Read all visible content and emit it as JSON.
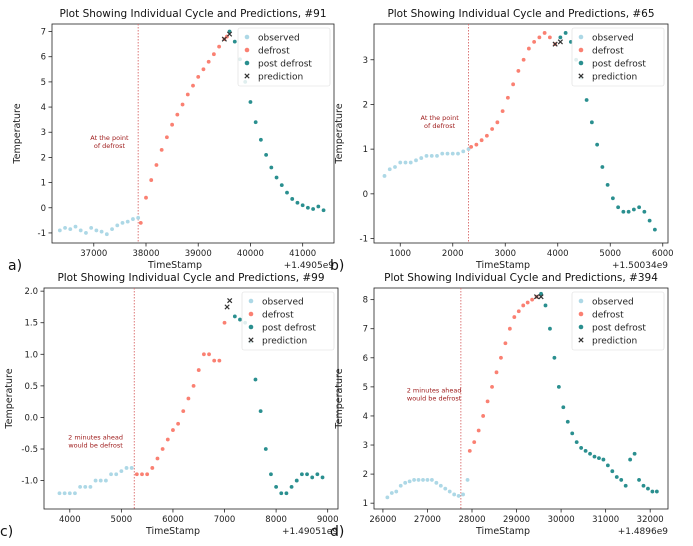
{
  "figure": {
    "colors": {
      "observed": "#add8e6",
      "defrost": "#fa8072",
      "post_defrost": "#2a8f8f",
      "prediction": "#333333",
      "vline": "#d96a6a",
      "annotation": "#a02020"
    }
  },
  "chart_data": [
    {
      "type": "scatter",
      "panel_label": "a)",
      "title": "Plot Showing Individual Cycle and Predictions, #91",
      "xlabel": "TimeStamp",
      "ylabel": "Temperature",
      "offset_text": "+1.4905e9",
      "xlim": [
        36200,
        41600
      ],
      "ylim": [
        -1.4,
        7.3
      ],
      "xticks": [
        37000,
        38000,
        39000,
        40000,
        41000
      ],
      "xtick_labels": [
        "37000",
        "38000",
        "39000",
        "40000",
        "41000"
      ],
      "yticks": [
        -1,
        0,
        1,
        2,
        3,
        4,
        5,
        6,
        7
      ],
      "ytick_labels": [
        "-1",
        "0",
        "1",
        "2",
        "3",
        "4",
        "5",
        "6",
        "7"
      ],
      "legend": [
        "observed",
        "defrost",
        "post defrost",
        "prediction"
      ],
      "legend_position": "top-right",
      "vline_x": 37850,
      "annotation": {
        "lines": [
          "At the point",
          "of defrost"
        ],
        "x": 37300,
        "y": 2.7
      },
      "series": [
        {
          "name": "observed",
          "x": [
            36350,
            36450,
            36550,
            36650,
            36750,
            36850,
            36950,
            37050,
            37150,
            37250,
            37350,
            37450,
            37550,
            37650,
            37750,
            37850
          ],
          "y": [
            -0.9,
            -0.8,
            -0.85,
            -0.75,
            -0.9,
            -1.0,
            -0.8,
            -0.9,
            -0.95,
            -1.05,
            -0.85,
            -0.7,
            -0.6,
            -0.55,
            -0.45,
            -0.4
          ]
        },
        {
          "name": "defrost",
          "x": [
            37900,
            38000,
            38100,
            38200,
            38300,
            38400,
            38500,
            38600,
            38700,
            38800,
            38900,
            39000,
            39100,
            39200,
            39300,
            39400,
            39500,
            39550
          ],
          "y": [
            -0.6,
            0.4,
            1.1,
            1.7,
            2.3,
            2.8,
            3.3,
            3.7,
            4.1,
            4.5,
            4.85,
            5.2,
            5.5,
            5.8,
            6.1,
            6.4,
            6.7,
            6.8
          ]
        },
        {
          "name": "post defrost",
          "x": [
            39600,
            39700,
            39800,
            39900,
            40000,
            40100,
            40200,
            40300,
            40400,
            40500,
            40600,
            40700,
            40800,
            40900,
            41000,
            41100,
            41200,
            41300,
            41400
          ],
          "y": [
            7.0,
            6.6,
            5.9,
            5.0,
            4.2,
            3.4,
            2.7,
            2.1,
            1.6,
            1.2,
            0.9,
            0.6,
            0.35,
            0.2,
            0.1,
            0.0,
            -0.05,
            0.05,
            -0.1
          ]
        },
        {
          "name": "prediction",
          "x": [
            39500,
            39600
          ],
          "y": [
            6.7,
            6.9
          ]
        }
      ]
    },
    {
      "type": "scatter",
      "panel_label": "b)",
      "title": "Plot Showing Individual Cycle and Predictions, #65",
      "xlabel": "TimeStamp",
      "ylabel": "Temperature",
      "offset_text": "+1.50034e9",
      "xlim": [
        500,
        6100
      ],
      "ylim": [
        -1.1,
        3.8
      ],
      "xticks": [
        1000,
        2000,
        3000,
        4000,
        5000,
        6000
      ],
      "xtick_labels": [
        "1000",
        "2000",
        "3000",
        "4000",
        "5000",
        "6000"
      ],
      "yticks": [
        -1,
        0,
        1,
        2,
        3
      ],
      "ytick_labels": [
        "-1",
        "0",
        "1",
        "2",
        "3"
      ],
      "legend": [
        "observed",
        "defrost",
        "post defrost",
        "prediction"
      ],
      "legend_position": "top-right",
      "vline_x": 2300,
      "annotation": {
        "lines": [
          "At the point",
          "of defrost"
        ],
        "x": 1750,
        "y": 1.65
      },
      "series": [
        {
          "name": "observed",
          "x": [
            700,
            800,
            900,
            1000,
            1100,
            1200,
            1300,
            1400,
            1500,
            1600,
            1700,
            1800,
            1900,
            2000,
            2100,
            2200,
            2300
          ],
          "y": [
            0.4,
            0.55,
            0.6,
            0.7,
            0.7,
            0.7,
            0.75,
            0.8,
            0.85,
            0.85,
            0.85,
            0.9,
            0.9,
            0.9,
            0.9,
            0.95,
            1.0
          ]
        },
        {
          "name": "defrost",
          "x": [
            2350,
            2450,
            2550,
            2650,
            2750,
            2850,
            2950,
            3050,
            3150,
            3250,
            3350,
            3450,
            3550,
            3650,
            3750,
            3850,
            3950
          ],
          "y": [
            1.05,
            1.1,
            1.2,
            1.3,
            1.45,
            1.6,
            1.85,
            2.15,
            2.45,
            2.75,
            3.0,
            3.25,
            3.4,
            3.5,
            3.6,
            3.5,
            3.35
          ]
        },
        {
          "name": "post defrost",
          "x": [
            4050,
            4150,
            4250,
            4350,
            4450,
            4550,
            4650,
            4750,
            4850,
            4950,
            5050,
            5150,
            5250,
            5350,
            5450,
            5550,
            5650,
            5750,
            5850
          ],
          "y": [
            3.5,
            3.6,
            3.4,
            3.0,
            2.6,
            2.1,
            1.6,
            1.1,
            0.6,
            0.2,
            -0.1,
            -0.3,
            -0.4,
            -0.4,
            -0.35,
            -0.3,
            -0.4,
            -0.6,
            -0.8
          ]
        },
        {
          "name": "prediction",
          "x": [
            3950,
            4050
          ],
          "y": [
            3.35,
            3.4
          ]
        }
      ]
    },
    {
      "type": "scatter",
      "panel_label": "c)",
      "title": "Plot Showing Individual Cycle and Predictions, #99",
      "xlabel": "TimeStamp",
      "ylabel": "Temperature",
      "offset_text": "+1.49051e9",
      "xlim": [
        3500,
        9200
      ],
      "ylim": [
        -1.45,
        2.05
      ],
      "xticks": [
        4000,
        5000,
        6000,
        7000,
        8000,
        9000
      ],
      "xtick_labels": [
        "4000",
        "5000",
        "6000",
        "7000",
        "8000",
        "9000"
      ],
      "yticks": [
        -1.0,
        -0.5,
        0.0,
        0.5,
        1.0,
        1.5,
        2.0
      ],
      "ytick_labels": [
        "-1.0",
        "-0.5",
        "0.0",
        "0.5",
        "1.0",
        "1.5",
        "2.0"
      ],
      "legend": [
        "observed",
        "defrost",
        "post defrost",
        "prediction"
      ],
      "legend_position": "top-right",
      "vline_x": 5250,
      "annotation": {
        "lines": [
          "2 minutes ahead",
          "would be defrost"
        ],
        "x": 4500,
        "y": -0.35
      },
      "series": [
        {
          "name": "observed",
          "x": [
            3800,
            3900,
            4000,
            4100,
            4200,
            4300,
            4400,
            4500,
            4600,
            4700,
            4800,
            4900,
            5000,
            5100,
            5200
          ],
          "y": [
            -1.2,
            -1.2,
            -1.2,
            -1.2,
            -1.1,
            -1.1,
            -1.1,
            -1.0,
            -1.0,
            -1.0,
            -0.9,
            -0.9,
            -0.85,
            -0.8,
            -0.8
          ]
        },
        {
          "name": "defrost",
          "x": [
            5300,
            5400,
            5500,
            5600,
            5700,
            5800,
            5900,
            6000,
            6100,
            6200,
            6300,
            6400,
            6500,
            6600,
            6700,
            6800,
            6900,
            7000
          ],
          "y": [
            -0.9,
            -0.9,
            -0.9,
            -0.8,
            -0.65,
            -0.5,
            -0.35,
            -0.2,
            -0.1,
            0.1,
            0.3,
            0.5,
            0.75,
            1.0,
            1.0,
            0.9,
            0.9,
            1.5
          ]
        },
        {
          "name": "post defrost",
          "x": [
            7200,
            7300,
            7400,
            7500,
            7600,
            7700,
            7800,
            7900,
            8000,
            8100,
            8200,
            8300,
            8400,
            8500,
            8600,
            8700,
            8800,
            8900
          ],
          "y": [
            1.6,
            1.55,
            1.5,
            1.2,
            0.6,
            0.1,
            -0.5,
            -0.9,
            -1.1,
            -1.2,
            -1.2,
            -1.1,
            -1.0,
            -0.9,
            -0.9,
            -0.95,
            -0.9,
            -0.95
          ]
        },
        {
          "name": "prediction",
          "x": [
            7050,
            7100
          ],
          "y": [
            1.75,
            1.85
          ]
        }
      ]
    },
    {
      "type": "scatter",
      "panel_label": "d)",
      "title": "Plot Showing Individual Cycle and Predictions, #394",
      "xlabel": "TimeStamp",
      "ylabel": "Temperature",
      "offset_text": "+1.4896e9",
      "xlim": [
        25800,
        32400
      ],
      "ylim": [
        0.8,
        8.4
      ],
      "xticks": [
        26000,
        27000,
        28000,
        29000,
        30000,
        31000,
        32000
      ],
      "xtick_labels": [
        "26000",
        "27000",
        "28000",
        "29000",
        "30000",
        "31000",
        "32000"
      ],
      "yticks": [
        1,
        2,
        3,
        4,
        5,
        6,
        7,
        8
      ],
      "ytick_labels": [
        "1",
        "2",
        "3",
        "4",
        "5",
        "6",
        "7",
        "8"
      ],
      "legend": [
        "observed",
        "defrost",
        "post defrost",
        "prediction"
      ],
      "legend_position": "top-right",
      "vline_x": 27750,
      "annotation": {
        "lines": [
          "2 minutes ahead",
          "would be defrost"
        ],
        "x": 27150,
        "y": 4.8
      },
      "series": [
        {
          "name": "observed",
          "x": [
            26100,
            26200,
            26300,
            26400,
            26500,
            26600,
            26700,
            26800,
            26900,
            27000,
            27100,
            27200,
            27300,
            27400,
            27500,
            27600,
            27700,
            27800,
            27900
          ],
          "y": [
            1.2,
            1.35,
            1.4,
            1.6,
            1.7,
            1.75,
            1.8,
            1.8,
            1.8,
            1.8,
            1.8,
            1.7,
            1.6,
            1.5,
            1.4,
            1.3,
            1.25,
            1.3,
            1.8
          ]
        },
        {
          "name": "defrost",
          "x": [
            27950,
            28050,
            28150,
            28250,
            28350,
            28450,
            28550,
            28650,
            28750,
            28850,
            28950,
            29050,
            29150,
            29250,
            29350,
            29450
          ],
          "y": [
            2.8,
            3.1,
            3.5,
            4.0,
            4.5,
            5.0,
            5.5,
            6.0,
            6.5,
            7.0,
            7.4,
            7.6,
            7.8,
            7.9,
            8.0,
            8.1
          ]
        },
        {
          "name": "post defrost",
          "x": [
            29550,
            29650,
            29750,
            29850,
            29950,
            30050,
            30150,
            30250,
            30350,
            30450,
            30550,
            30650,
            30750,
            30850,
            30950,
            31050,
            31150,
            31250,
            31350,
            31450,
            31550,
            31650,
            31750,
            31850,
            31950,
            32050,
            32150
          ],
          "y": [
            8.2,
            7.8,
            7.0,
            6.0,
            5.0,
            4.3,
            3.8,
            3.4,
            3.1,
            2.9,
            2.8,
            2.7,
            2.6,
            2.55,
            2.5,
            2.3,
            2.1,
            1.9,
            1.8,
            1.6,
            2.5,
            2.7,
            1.8,
            1.6,
            1.5,
            1.4,
            1.4
          ]
        },
        {
          "name": "prediction",
          "x": [
            29450,
            29550
          ],
          "y": [
            8.1,
            8.1
          ]
        }
      ]
    }
  ]
}
